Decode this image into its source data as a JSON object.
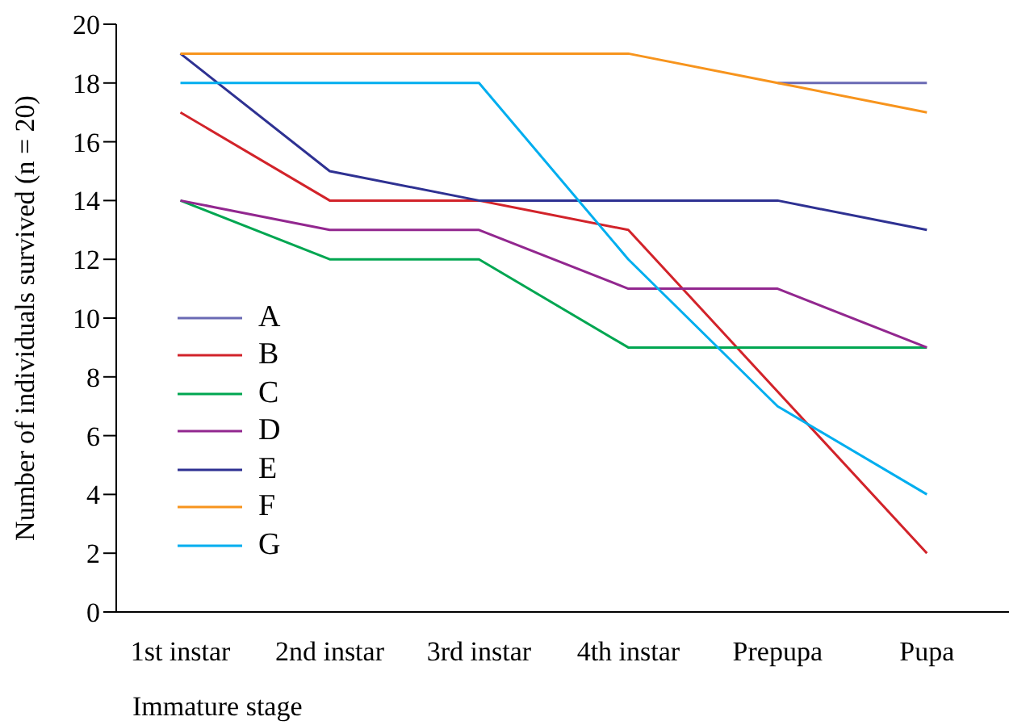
{
  "chart_data": {
    "type": "line",
    "xlabel": "Immature stage",
    "ylabel": "Number of individuals survived (n = 20)",
    "categories": [
      "1st instar",
      "2nd instar",
      "3rd instar",
      "4th instar",
      "Prepupa",
      "Pupa"
    ],
    "series": [
      {
        "name": "A",
        "color": "#6a6ab4",
        "values": [
          null,
          null,
          null,
          null,
          18,
          18
        ]
      },
      {
        "name": "B",
        "color": "#d2232a",
        "values": [
          17,
          14,
          14,
          13,
          7.5,
          2
        ]
      },
      {
        "name": "C",
        "color": "#00a651",
        "values": [
          14,
          12,
          12,
          9,
          9,
          9
        ]
      },
      {
        "name": "D",
        "color": "#92278f",
        "values": [
          14,
          13,
          13,
          11,
          11,
          9
        ]
      },
      {
        "name": "E",
        "color": "#2e3192",
        "values": [
          19,
          15,
          14,
          14,
          14,
          13
        ]
      },
      {
        "name": "F",
        "color": "#f7941d",
        "values": [
          19,
          19,
          19,
          19,
          18,
          17
        ]
      },
      {
        "name": "G",
        "color": "#00aeef",
        "values": [
          18,
          18,
          18,
          12,
          7,
          4
        ]
      }
    ],
    "ylim": [
      0,
      20
    ],
    "yticks": [
      0,
      2,
      4,
      6,
      8,
      10,
      12,
      14,
      16,
      18,
      20
    ],
    "grid": false,
    "legend": "left",
    "marker": "none",
    "line_style": "solid"
  }
}
